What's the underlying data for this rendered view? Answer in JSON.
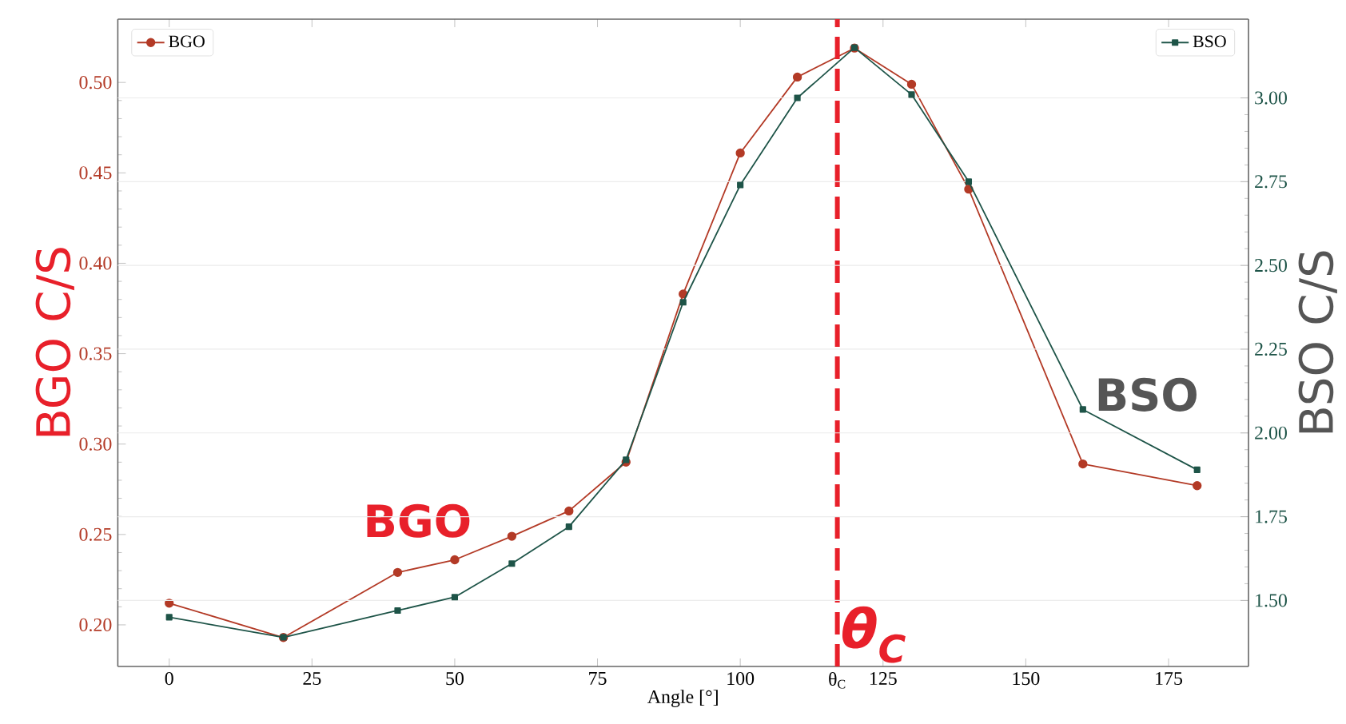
{
  "chart_data": {
    "type": "line",
    "xlabel": "Angle [°]",
    "ylabel": "BGO C/S",
    "y2label": "BSO C/S",
    "x": [
      0,
      20,
      40,
      50,
      60,
      70,
      80,
      90,
      100,
      110,
      120,
      130,
      140,
      160,
      180
    ],
    "series": [
      {
        "name": "BGO",
        "color": "#b33a26",
        "marker": "circle",
        "values": [
          0.212,
          0.193,
          0.229,
          0.236,
          0.249,
          0.263,
          0.29,
          0.383,
          0.461,
          0.503,
          0.519,
          0.499,
          0.441,
          0.289,
          0.277
        ]
      },
      {
        "name": "BSO",
        "color": "#1e5448",
        "marker": "square",
        "axis": "y2",
        "values": [
          1.45,
          1.39,
          1.47,
          1.51,
          1.61,
          1.72,
          1.92,
          2.39,
          2.74,
          3.0,
          3.15,
          3.01,
          2.75,
          2.07,
          1.89
        ]
      }
    ],
    "xlim": [
      -9,
      189
    ],
    "xticks": [
      0,
      25,
      50,
      75,
      100,
      {
        "value": 117,
        "label": "θ$_{C}$"
      },
      125,
      150,
      175
    ],
    "ylim": [
      0.177,
      0.535
    ],
    "yticks": [
      {
        "value": 0.2,
        "label": "0.20"
      },
      0.25,
      {
        "value": 0.3,
        "label": "0.30"
      },
      0.35,
      {
        "value": 0.4,
        "label": "0.40"
      },
      0.45,
      {
        "value": 0.5,
        "label": "0.50"
      }
    ],
    "y2lim": [
      1.303,
      3.235
    ],
    "y2ticks": [
      {
        "value": 1.5,
        "label": "1.50"
      },
      1.75,
      {
        "value": 2.0,
        "label": "2.00"
      },
      2.25,
      {
        "value": 2.5,
        "label": "2.50"
      },
      2.75,
      {
        "value": 3.0,
        "label": "3.00"
      }
    ],
    "ref_lines": [
      {
        "axis": "x",
        "value": 117,
        "label": "θ$_{C}$",
        "color": "#e8202a",
        "line_style": "dashed"
      }
    ],
    "annotations": [
      "BGO",
      "BSO"
    ],
    "grid": "y",
    "legend": "top left"
  }
}
